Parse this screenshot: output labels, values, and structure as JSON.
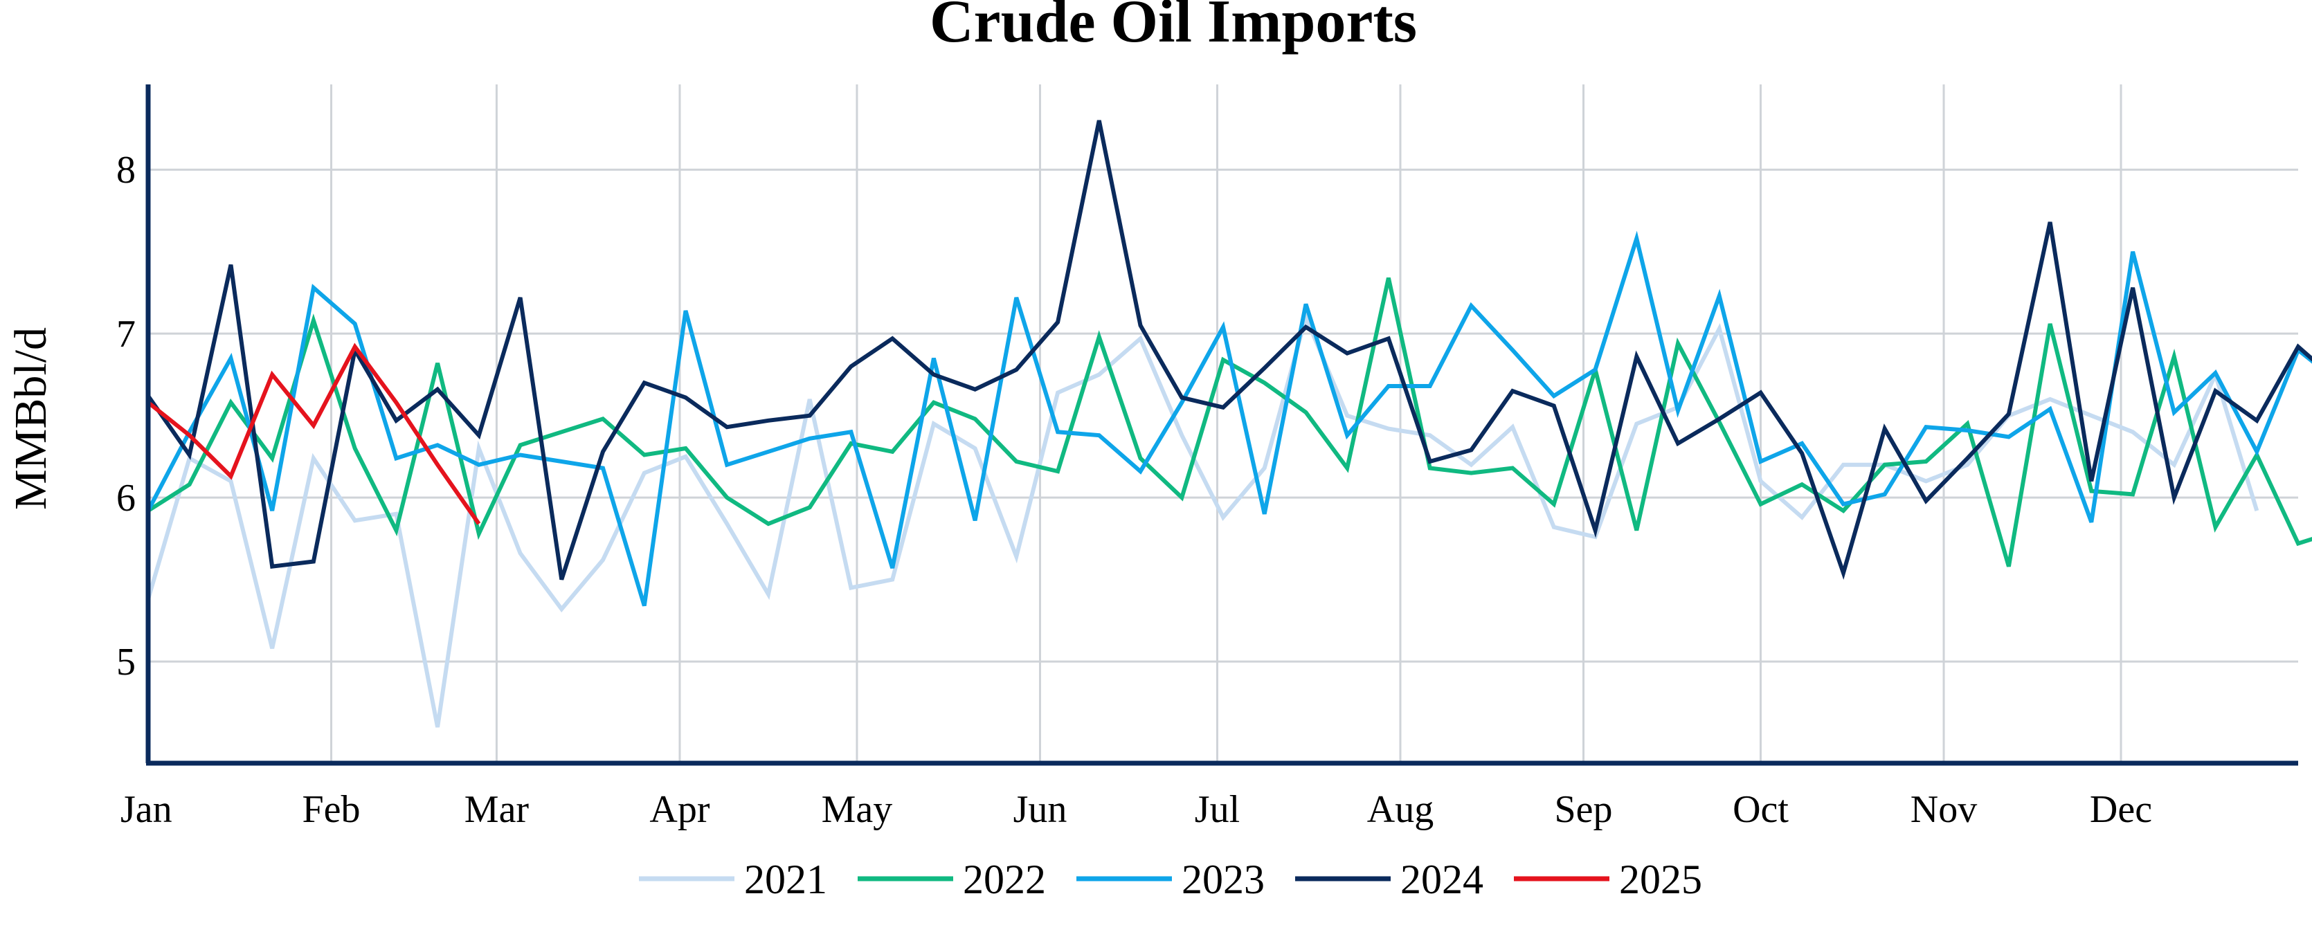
{
  "chart_data": {
    "type": "line",
    "title": "Crude Oil Imports",
    "xlabel": "",
    "ylabel": "MMBbl/d",
    "x_ticks": [
      "Jan",
      "Feb",
      "Mar",
      "Apr",
      "May",
      "Jun",
      "Jul",
      "Aug",
      "Sep",
      "Oct",
      "Nov",
      "Dec"
    ],
    "y_ticks": [
      5,
      6,
      7,
      8
    ],
    "ylim": [
      4.38,
      8.52
    ],
    "xlim": [
      1,
      53
    ],
    "grid": true,
    "legend": "bottom",
    "series": [
      {
        "name": "2021",
        "color": "#c5dbf1",
        "values": [
          5.38,
          6.24,
          6.1,
          5.08,
          6.24,
          5.86,
          5.9,
          4.6,
          6.3,
          5.66,
          5.32,
          5.62,
          6.15,
          6.25,
          5.84,
          5.41,
          6.6,
          5.45,
          5.5,
          6.45,
          6.3,
          5.64,
          6.64,
          6.75,
          6.97,
          6.38,
          5.88,
          6.18,
          7.1,
          6.5,
          6.42,
          6.38,
          6.2,
          6.43,
          5.82,
          5.76,
          6.45,
          6.55,
          7.03,
          6.1,
          5.88,
          6.2,
          6.2,
          6.1,
          6.2,
          6.5,
          6.6,
          6.5,
          6.4,
          6.2,
          6.75,
          5.92
        ]
      },
      {
        "name": "2022",
        "color": "#10b981",
        "values": [
          5.92,
          6.08,
          6.58,
          6.24,
          7.08,
          6.3,
          5.8,
          6.82,
          5.78,
          6.32,
          6.4,
          6.48,
          6.26,
          6.3,
          6.0,
          5.84,
          5.94,
          6.33,
          6.28,
          6.58,
          6.48,
          6.22,
          6.16,
          6.98,
          6.24,
          6.0,
          6.84,
          6.7,
          6.52,
          6.18,
          7.34,
          6.18,
          6.15,
          6.18,
          5.96,
          6.78,
          5.8,
          6.94,
          6.46,
          5.96,
          6.08,
          5.92,
          6.2,
          6.22,
          6.45,
          5.58,
          7.06,
          6.04,
          6.02,
          6.86,
          5.82,
          6.26,
          5.72,
          5.8
        ]
      },
      {
        "name": "2023",
        "color": "#0ea5e9",
        "values": [
          5.92,
          6.4,
          6.85,
          5.92,
          7.28,
          7.06,
          6.24,
          6.32,
          6.2,
          6.26,
          6.22,
          6.18,
          5.34,
          7.14,
          6.2,
          6.28,
          6.36,
          6.4,
          5.57,
          6.85,
          5.86,
          7.22,
          6.4,
          6.38,
          6.16,
          6.58,
          7.04,
          5.9,
          7.18,
          6.38,
          6.68,
          6.68,
          7.17,
          6.9,
          6.62,
          6.78,
          7.58,
          6.53,
          7.23,
          6.22,
          6.33,
          5.96,
          6.02,
          6.43,
          6.41,
          6.37,
          6.54,
          5.85,
          7.5,
          6.52,
          6.76,
          6.28,
          6.9,
          6.7
        ]
      },
      {
        "name": "2024",
        "color": "#0a2a5c",
        "values": [
          6.62,
          6.26,
          7.42,
          5.58,
          5.61,
          6.9,
          6.47,
          6.66,
          6.38,
          7.22,
          5.5,
          6.28,
          6.7,
          6.61,
          6.43,
          6.47,
          6.5,
          6.8,
          6.97,
          6.75,
          6.66,
          6.78,
          7.07,
          8.3,
          7.05,
          6.61,
          6.55,
          6.79,
          7.04,
          6.88,
          6.97,
          6.22,
          6.29,
          6.65,
          6.56,
          5.8,
          6.86,
          6.33,
          6.48,
          6.64,
          6.27,
          5.54,
          6.42,
          5.98,
          6.24,
          6.51,
          7.68,
          6.1,
          7.28,
          6.0,
          6.65,
          6.47,
          6.92,
          6.7
        ]
      },
      {
        "name": "2025",
        "color": "#e5131d",
        "values": [
          6.58,
          6.38,
          6.13,
          6.75,
          6.44,
          6.92,
          6.58,
          6.2,
          5.84
        ]
      }
    ]
  }
}
